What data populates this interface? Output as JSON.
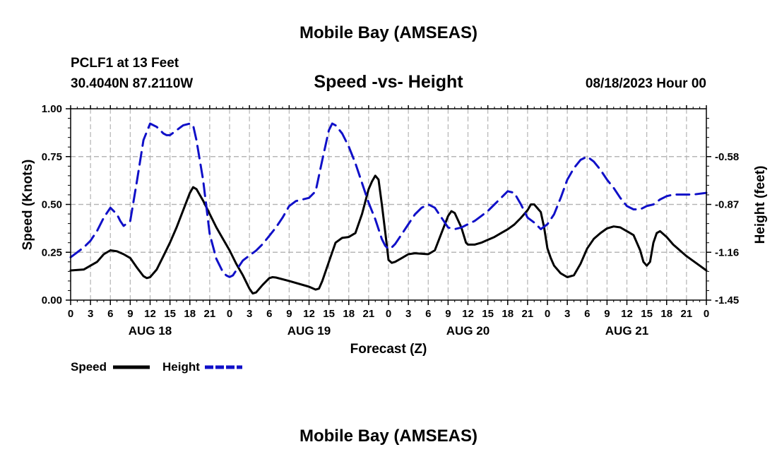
{
  "page_title": "Mobile Bay (AMSEAS)",
  "station": {
    "label": "PCLF1 at 13 Feet",
    "coords": "30.4040N  87.2110W"
  },
  "footer_title": "Mobile Bay (AMSEAS)",
  "colors": {
    "speed": "#000000",
    "height": "#1010c8",
    "grid": "#b4b4b4",
    "axis": "#000000"
  },
  "chart_data": {
    "type": "line",
    "title": "Speed -vs- Height",
    "date_label": "08/18/2023 Hour 00",
    "xlabel": "Forecast (Z)",
    "ylabel_left": "Speed (Knots)",
    "ylabel_right": "Height (feet)",
    "xlim": [
      0,
      96
    ],
    "ylim_left": [
      0,
      1
    ],
    "ylim_right": [
      -1.45,
      -0.29
    ],
    "grid": true,
    "x_tick_hours": [
      0,
      3,
      6,
      9,
      12,
      15,
      18,
      21,
      24,
      27,
      30,
      33,
      36,
      39,
      42,
      45,
      48,
      51,
      54,
      57,
      60,
      63,
      66,
      69,
      72,
      75,
      78,
      81,
      84,
      87,
      90,
      93,
      96
    ],
    "x_tick_labels": [
      "0",
      "3",
      "6",
      "9",
      "12",
      "15",
      "18",
      "21",
      "0",
      "3",
      "6",
      "9",
      "12",
      "15",
      "18",
      "21",
      "0",
      "3",
      "6",
      "9",
      "12",
      "15",
      "18",
      "21",
      "0",
      "3",
      "6",
      "9",
      "12",
      "15",
      "18",
      "21",
      "0"
    ],
    "day_labels": [
      {
        "hour": 12,
        "text": "AUG 18"
      },
      {
        "hour": 36,
        "text": "AUG 19"
      },
      {
        "hour": 60,
        "text": "AUG 20"
      },
      {
        "hour": 84,
        "text": "AUG 21"
      }
    ],
    "left_ticks": [
      {
        "value": 0.0,
        "text": "0.00"
      },
      {
        "value": 0.25,
        "text": "0.25"
      },
      {
        "value": 0.5,
        "text": "0.50"
      },
      {
        "value": 0.75,
        "text": "0.75"
      },
      {
        "value": 1.0,
        "text": "1.00"
      }
    ],
    "right_ticks": [
      {
        "value": -1.45,
        "text": "-1.45"
      },
      {
        "value": -1.16,
        "text": "-1.16"
      },
      {
        "value": -0.87,
        "text": "-0.87"
      },
      {
        "value": -0.58,
        "text": "-0.58"
      }
    ],
    "legend": [
      {
        "name": "Speed",
        "series": "speed"
      },
      {
        "name": "Height",
        "series": "height"
      }
    ],
    "legend_position": "bottom-left",
    "series": [
      {
        "name": "Speed",
        "key": "speed",
        "axis": "left",
        "dash": "solid",
        "points": [
          [
            0,
            0.155
          ],
          [
            2,
            0.16
          ],
          [
            3,
            0.18
          ],
          [
            4,
            0.2
          ],
          [
            5,
            0.24
          ],
          [
            6,
            0.26
          ],
          [
            7,
            0.255
          ],
          [
            8,
            0.24
          ],
          [
            9,
            0.22
          ],
          [
            10,
            0.17
          ],
          [
            11,
            0.125
          ],
          [
            11.5,
            0.115
          ],
          [
            12,
            0.12
          ],
          [
            13,
            0.16
          ],
          [
            14,
            0.23
          ],
          [
            15,
            0.3
          ],
          [
            16,
            0.38
          ],
          [
            17,
            0.47
          ],
          [
            18,
            0.56
          ],
          [
            18.5,
            0.59
          ],
          [
            19,
            0.58
          ],
          [
            20,
            0.52
          ],
          [
            21,
            0.45
          ],
          [
            22,
            0.38
          ],
          [
            23,
            0.32
          ],
          [
            24,
            0.26
          ],
          [
            25,
            0.19
          ],
          [
            26,
            0.13
          ],
          [
            27,
            0.06
          ],
          [
            27.5,
            0.035
          ],
          [
            28,
            0.04
          ],
          [
            29,
            0.08
          ],
          [
            30,
            0.115
          ],
          [
            30.5,
            0.12
          ],
          [
            31,
            0.118
          ],
          [
            33,
            0.1
          ],
          [
            36,
            0.07
          ],
          [
            37,
            0.055
          ],
          [
            37.5,
            0.06
          ],
          [
            38,
            0.1
          ],
          [
            39,
            0.2
          ],
          [
            40,
            0.3
          ],
          [
            41,
            0.325
          ],
          [
            42,
            0.33
          ],
          [
            43,
            0.35
          ],
          [
            44,
            0.45
          ],
          [
            45,
            0.58
          ],
          [
            45.5,
            0.62
          ],
          [
            46,
            0.65
          ],
          [
            46.5,
            0.63
          ],
          [
            47,
            0.5
          ],
          [
            47.7,
            0.3
          ],
          [
            48,
            0.21
          ],
          [
            48.5,
            0.195
          ],
          [
            49,
            0.2
          ],
          [
            50,
            0.22
          ],
          [
            51,
            0.24
          ],
          [
            52,
            0.245
          ],
          [
            54,
            0.24
          ],
          [
            55,
            0.26
          ],
          [
            56,
            0.35
          ],
          [
            57,
            0.44
          ],
          [
            57.5,
            0.465
          ],
          [
            58,
            0.455
          ],
          [
            59,
            0.38
          ],
          [
            59.7,
            0.3
          ],
          [
            60,
            0.29
          ],
          [
            61,
            0.29
          ],
          [
            62,
            0.3
          ],
          [
            63,
            0.315
          ],
          [
            64,
            0.33
          ],
          [
            65,
            0.35
          ],
          [
            66,
            0.37
          ],
          [
            67,
            0.395
          ],
          [
            68,
            0.43
          ],
          [
            69,
            0.47
          ],
          [
            69.5,
            0.5
          ],
          [
            70,
            0.5
          ],
          [
            71,
            0.46
          ],
          [
            71.5,
            0.38
          ],
          [
            72,
            0.27
          ],
          [
            72.5,
            0.22
          ],
          [
            73,
            0.18
          ],
          [
            74,
            0.14
          ],
          [
            75,
            0.12
          ],
          [
            76,
            0.13
          ],
          [
            77,
            0.19
          ],
          [
            78,
            0.27
          ],
          [
            79,
            0.32
          ],
          [
            80,
            0.35
          ],
          [
            81,
            0.375
          ],
          [
            82,
            0.385
          ],
          [
            83,
            0.38
          ],
          [
            84,
            0.36
          ],
          [
            85,
            0.34
          ],
          [
            86,
            0.26
          ],
          [
            86.5,
            0.2
          ],
          [
            87,
            0.18
          ],
          [
            87.5,
            0.2
          ],
          [
            88,
            0.3
          ],
          [
            88.5,
            0.35
          ],
          [
            89,
            0.36
          ],
          [
            90,
            0.33
          ],
          [
            91,
            0.29
          ],
          [
            93,
            0.23
          ],
          [
            95,
            0.18
          ],
          [
            96,
            0.155
          ]
        ]
      },
      {
        "name": "Height",
        "key": "height",
        "axis": "right",
        "dash": "dashed",
        "points": [
          [
            0,
            -1.19
          ],
          [
            2,
            -1.13
          ],
          [
            3,
            -1.09
          ],
          [
            4,
            -1.03
          ],
          [
            5,
            -0.95
          ],
          [
            6,
            -0.89
          ],
          [
            7,
            -0.93
          ],
          [
            7.5,
            -0.97
          ],
          [
            8,
            -1.0
          ],
          [
            9,
            -0.97
          ],
          [
            10,
            -0.73
          ],
          [
            11,
            -0.48
          ],
          [
            12,
            -0.38
          ],
          [
            13,
            -0.4
          ],
          [
            14,
            -0.44
          ],
          [
            14.5,
            -0.45
          ],
          [
            15,
            -0.45
          ],
          [
            16,
            -0.42
          ],
          [
            17,
            -0.39
          ],
          [
            18,
            -0.38
          ],
          [
            18.5,
            -0.39
          ],
          [
            19,
            -0.48
          ],
          [
            20,
            -0.72
          ],
          [
            21,
            -1.05
          ],
          [
            22,
            -1.2
          ],
          [
            23,
            -1.28
          ],
          [
            23.5,
            -1.3
          ],
          [
            24,
            -1.31
          ],
          [
            24.5,
            -1.3
          ],
          [
            25,
            -1.27
          ],
          [
            26,
            -1.21
          ],
          [
            27,
            -1.18
          ],
          [
            28,
            -1.15
          ],
          [
            29,
            -1.11
          ],
          [
            30,
            -1.06
          ],
          [
            31,
            -1.01
          ],
          [
            32,
            -0.95
          ],
          [
            33,
            -0.88
          ],
          [
            34,
            -0.85
          ],
          [
            35,
            -0.84
          ],
          [
            36,
            -0.83
          ],
          [
            37,
            -0.79
          ],
          [
            38,
            -0.6
          ],
          [
            39,
            -0.42
          ],
          [
            39.5,
            -0.38
          ],
          [
            40,
            -0.39
          ],
          [
            41,
            -0.44
          ],
          [
            42,
            -0.52
          ],
          [
            43,
            -0.62
          ],
          [
            44,
            -0.74
          ],
          [
            45,
            -0.86
          ],
          [
            46,
            -0.96
          ],
          [
            47,
            -1.08
          ],
          [
            47.5,
            -1.12
          ],
          [
            48,
            -1.14
          ],
          [
            48.5,
            -1.13
          ],
          [
            49,
            -1.11
          ],
          [
            50,
            -1.05
          ],
          [
            51,
            -0.99
          ],
          [
            52,
            -0.93
          ],
          [
            53,
            -0.89
          ],
          [
            54,
            -0.87
          ],
          [
            55,
            -0.89
          ],
          [
            56,
            -0.95
          ],
          [
            57,
            -1.01
          ],
          [
            58,
            -1.02
          ],
          [
            59,
            -1.01
          ],
          [
            60,
            -0.99
          ],
          [
            61,
            -0.97
          ],
          [
            62,
            -0.94
          ],
          [
            63,
            -0.91
          ],
          [
            64,
            -0.87
          ],
          [
            65,
            -0.83
          ],
          [
            66,
            -0.79
          ],
          [
            67,
            -0.8
          ],
          [
            68,
            -0.87
          ],
          [
            69,
            -0.95
          ],
          [
            70,
            -0.98
          ],
          [
            71,
            -1.02
          ],
          [
            72,
            -0.99
          ],
          [
            73,
            -0.93
          ],
          [
            74,
            -0.83
          ],
          [
            75,
            -0.72
          ],
          [
            76,
            -0.65
          ],
          [
            77,
            -0.6
          ],
          [
            78,
            -0.58
          ],
          [
            79,
            -0.61
          ],
          [
            80,
            -0.66
          ],
          [
            81,
            -0.72
          ],
          [
            82,
            -0.77
          ],
          [
            83,
            -0.83
          ],
          [
            84,
            -0.88
          ],
          [
            85,
            -0.9
          ],
          [
            86,
            -0.9
          ],
          [
            87,
            -0.88
          ],
          [
            88,
            -0.87
          ],
          [
            89,
            -0.84
          ],
          [
            90,
            -0.82
          ],
          [
            91,
            -0.81
          ],
          [
            92,
            -0.81
          ],
          [
            94,
            -0.81
          ],
          [
            96,
            -0.8
          ]
        ]
      }
    ]
  }
}
